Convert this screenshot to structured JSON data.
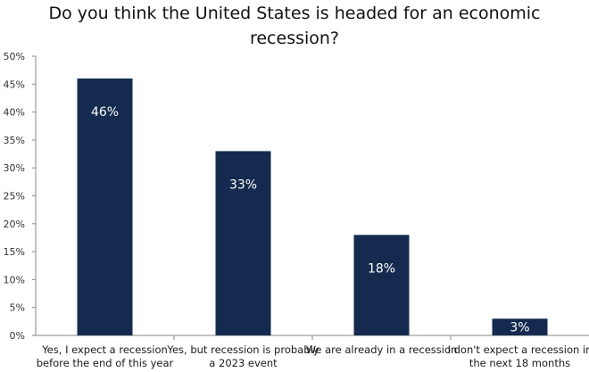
{
  "title": "Do you think the United States is headed for an economic recession?",
  "chart_data": {
    "type": "bar",
    "title": "Do you think the United States is headed for an economic recession?",
    "categories": [
      [
        "Yes, I expect a recession",
        "before the end of this year"
      ],
      [
        "Yes, but recession is probably",
        "a 2023 event"
      ],
      [
        "We are already in a recession"
      ],
      [
        "I don't expect a recession in",
        "the next 18 months"
      ]
    ],
    "values": [
      46,
      33,
      18,
      3
    ],
    "data_labels": [
      "46%",
      "33%",
      "18%",
      "3%"
    ],
    "ylim": [
      0,
      50
    ],
    "yticks": [
      0,
      5,
      10,
      15,
      20,
      25,
      30,
      35,
      40,
      45,
      50
    ],
    "ytick_labels": [
      "0%",
      "5%",
      "10%",
      "15%",
      "20%",
      "25%",
      "30%",
      "35%",
      "40%",
      "45%",
      "50%"
    ],
    "xlabel": "",
    "ylabel": "",
    "grid": false,
    "legend": "none",
    "colors": {
      "bar": "#142b4f",
      "axis": "#8a8a8a",
      "label_inside": "#ffffff"
    }
  }
}
